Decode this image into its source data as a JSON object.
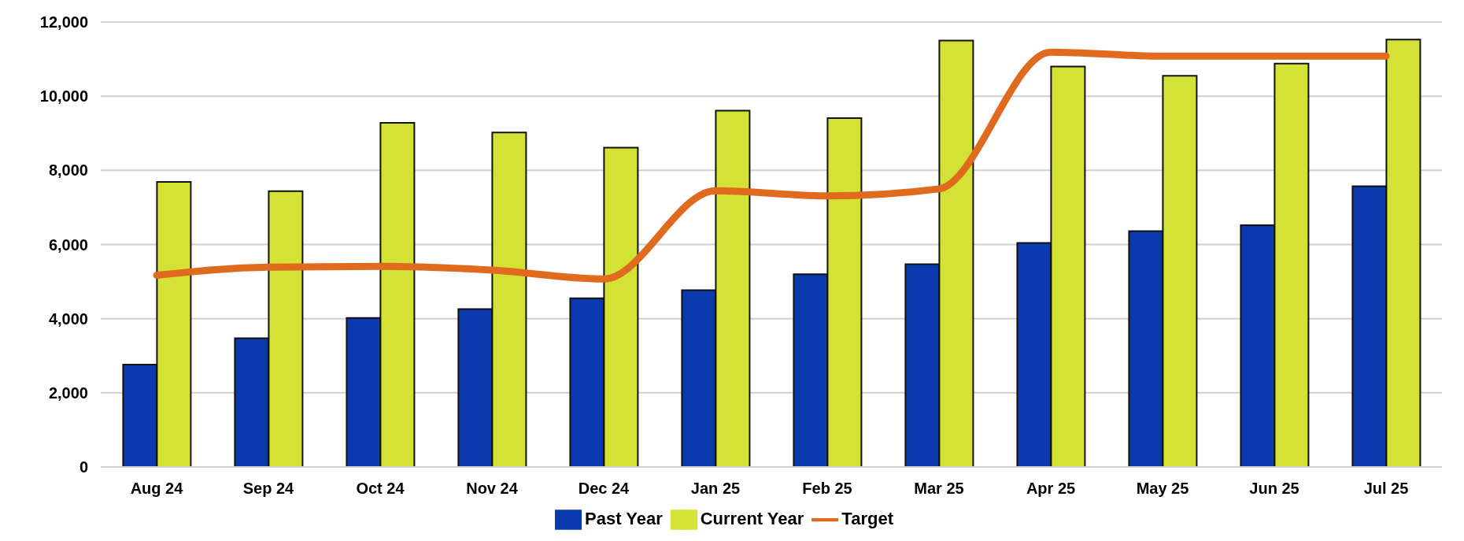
{
  "chart_data": {
    "type": "bar",
    "categories": [
      "Aug 24",
      "Sep 24",
      "Oct 24",
      "Nov 24",
      "Dec 24",
      "Jan 25",
      "Feb 25",
      "Mar 25",
      "Apr 25",
      "May 25",
      "Jun 25",
      "Jul 25"
    ],
    "series": [
      {
        "name": "Past Year",
        "color": "#0a3aad",
        "values": [
          2760,
          3470,
          4020,
          4260,
          4550,
          4770,
          5200,
          5470,
          6040,
          6360,
          6520,
          7570
        ]
      },
      {
        "name": "Current Year",
        "color": "#d4e135",
        "values": [
          7690,
          7440,
          9280,
          9020,
          8610,
          9610,
          9410,
          11500,
          10800,
          10550,
          10880,
          11530
        ]
      },
      {
        "name": "Target",
        "type": "line",
        "color": "#e06a1e",
        "values": [
          5170,
          5390,
          5410,
          5310,
          5070,
          7450,
          7310,
          7500,
          11190,
          11080,
          11080,
          11080
        ]
      }
    ],
    "ylim": [
      0,
      12000
    ],
    "yticks": [
      {
        "value": 0,
        "label": "0"
      },
      {
        "value": 2000,
        "label": "2,000"
      },
      {
        "value": 4000,
        "label": "4,000"
      },
      {
        "value": 6000,
        "label": "6,000"
      },
      {
        "value": 8000,
        "label": "8,000"
      },
      {
        "value": 10000,
        "label": "10,000"
      },
      {
        "value": 12000,
        "label": "12,000"
      }
    ],
    "grid": "y",
    "legend": "bottom"
  }
}
